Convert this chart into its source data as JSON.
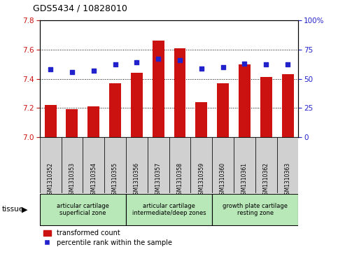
{
  "title": "GDS5434 / 10828010",
  "samples": [
    "GSM1310352",
    "GSM1310353",
    "GSM1310354",
    "GSM1310355",
    "GSM1310356",
    "GSM1310357",
    "GSM1310358",
    "GSM1310359",
    "GSM1310360",
    "GSM1310361",
    "GSM1310362",
    "GSM1310363"
  ],
  "bar_values": [
    7.22,
    7.19,
    7.21,
    7.37,
    7.44,
    7.66,
    7.61,
    7.24,
    7.37,
    7.5,
    7.41,
    7.43
  ],
  "dot_values": [
    58,
    56,
    57,
    62,
    64,
    67,
    66,
    59,
    60,
    63,
    62,
    62
  ],
  "ylim_left": [
    7.0,
    7.8
  ],
  "ylim_right": [
    0,
    100
  ],
  "yticks_left": [
    7.0,
    7.2,
    7.4,
    7.6,
    7.8
  ],
  "yticks_right": [
    0,
    25,
    50,
    75,
    100
  ],
  "bar_color": "#cc1111",
  "dot_color": "#2222cc",
  "plot_bg": "#ffffff",
  "tissue_groups": [
    {
      "label": "articular cartilage\nsuperficial zone",
      "start": 0,
      "end": 4
    },
    {
      "label": "articular cartilage\nintermediate/deep zones",
      "start": 4,
      "end": 8
    },
    {
      "label": "growth plate cartilage\nresting zone",
      "start": 8,
      "end": 12
    }
  ],
  "tissue_label": "tissue",
  "legend_bar_label": "transformed count",
  "legend_dot_label": "percentile rank within the sample",
  "left_axis_color": "#cc1111",
  "right_axis_color": "#2222cc",
  "grid_color": "#000000",
  "bar_bottom": 7.0,
  "tissue_color": "#b8e8b8",
  "tick_bg_color": "#d0d0d0",
  "bar_width": 0.55
}
